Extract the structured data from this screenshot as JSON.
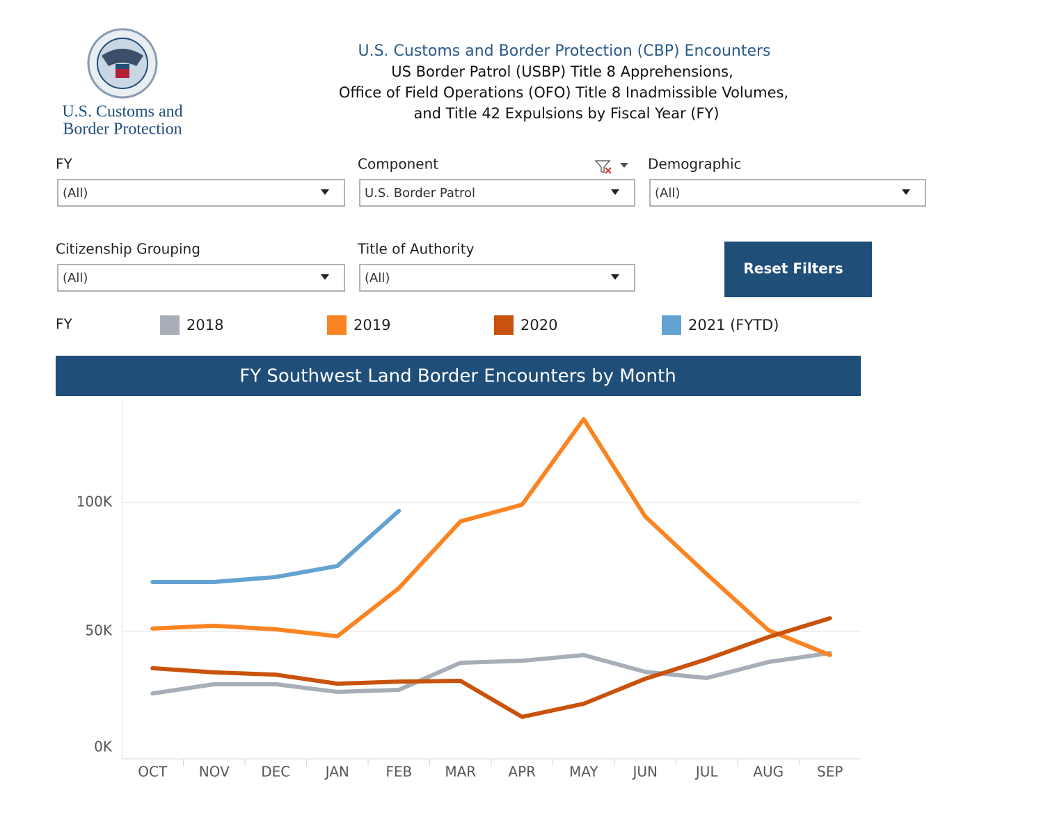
{
  "header": {
    "title": "U.S. Customs and Border Protection (CBP) Encounters",
    "subtitle_lines": [
      "US Border Patrol (USBP) Title 8 Apprehensions,",
      "Office of Field Operations (OFO) Title 8 Inadmissible Volumes,",
      "and Title 42 Expulsions by Fiscal Year (FY)"
    ],
    "logo_lines": [
      "U.S. Customs and",
      "Border Protection"
    ]
  },
  "filters": [
    {
      "label": "FY",
      "value": "(All)"
    },
    {
      "label": "Component",
      "value": "U.S. Border Patrol"
    },
    {
      "label": "Demographic",
      "value": "(All)"
    },
    {
      "label": "Citizenship Grouping",
      "value": "(All)"
    },
    {
      "label": "Title of Authority",
      "value": "(All)"
    }
  ],
  "reset_button": "Reset Filters",
  "chart_data": {
    "type": "line",
    "title": "FY Southwest Land Border Encounters by Month",
    "legend_title": "FY",
    "categories": [
      "OCT",
      "NOV",
      "DEC",
      "JAN",
      "FEB",
      "MAR",
      "APR",
      "MAY",
      "JUN",
      "JUL",
      "AUG",
      "SEP"
    ],
    "series": [
      {
        "name": "2018",
        "color": "#a7aeb8",
        "values": [
          25900,
          29500,
          29500,
          26500,
          27300,
          37800,
          38600,
          40800,
          34300,
          31900,
          38100,
          41600
        ]
      },
      {
        "name": "2019",
        "color": "#fb8422",
        "values": [
          51100,
          52200,
          50800,
          48100,
          66800,
          92700,
          99200,
          132400,
          94600,
          72200,
          50500,
          40800
        ]
      },
      {
        "name": "2020",
        "color": "#c9530c",
        "values": [
          35700,
          34100,
          33200,
          29700,
          30500,
          30800,
          16800,
          21900,
          31600,
          39200,
          47800,
          55100
        ]
      },
      {
        "name": "2021 (FYTD)",
        "color": "#62a3d1",
        "values": [
          69200,
          69200,
          71100,
          75400,
          96800,
          null,
          null,
          null,
          null,
          null,
          null,
          null
        ]
      }
    ],
    "ylim": [
      0,
      140000
    ],
    "yticks": [
      {
        "value": 0,
        "label": "0K"
      },
      {
        "value": 50000,
        "label": "50K"
      },
      {
        "value": 100000,
        "label": "100K"
      }
    ],
    "grid": true
  }
}
